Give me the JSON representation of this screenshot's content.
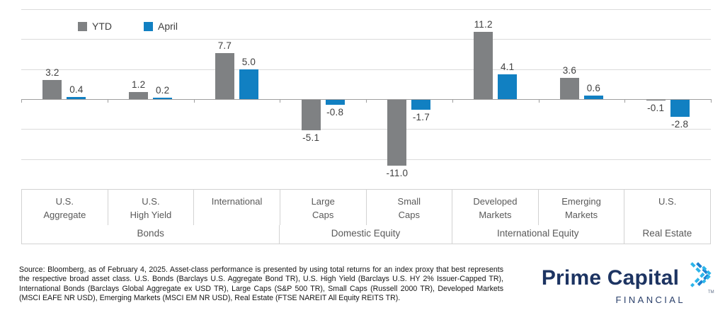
{
  "chart_data": {
    "type": "bar",
    "title": "",
    "categories": [
      "U.S.\nAggregate",
      "U.S.\nHigh Yield",
      "International",
      "Large\nCaps",
      "Small\nCaps",
      "Developed\nMarkets",
      "Emerging\nMarkets",
      "U.S."
    ],
    "series": [
      {
        "name": "YTD",
        "color": "#7f8183",
        "values": [
          3.2,
          1.2,
          7.7,
          -5.1,
          -11.0,
          11.2,
          3.6,
          -0.1
        ]
      },
      {
        "name": "April",
        "color": "#1180c2",
        "values": [
          0.4,
          0.2,
          5.0,
          -0.8,
          -1.7,
          4.1,
          0.6,
          -2.8
        ]
      }
    ],
    "groups": [
      {
        "label": "Bonds",
        "span": 3
      },
      {
        "label": "Domestic Equity",
        "span": 2
      },
      {
        "label": "International Equity",
        "span": 2
      },
      {
        "label": "Real Estate",
        "span": 1
      }
    ],
    "ylim": [
      -15,
      15
    ],
    "grid_step": 5,
    "grid": true,
    "legend_position": "top-left",
    "xlabel": "",
    "ylabel": ""
  },
  "legend": {
    "ytd_label": "YTD",
    "april_label": "April"
  },
  "footnote": "Source: Bloomberg, as of February 4, 2025. Asset-class performance is presented by using total returns for an index proxy that best represents the respective broad asset class. U.S. Bonds (Barclays U.S. Aggregate Bond TR), U.S. High Yield (Barclays U.S. HY 2% Issuer-Capped TR), International Bonds (Barclays Global Aggregate ex USD TR), Large Caps (S&P 500 TR), Small Caps (Russell 2000 TR), Developed Markets (MSCI EAFE NR USD), Emerging Markets (MSCI EM NR USD), Real Estate (FTSE NAREIT All Equity REITS TR).",
  "logo": {
    "name": "Prime Capital",
    "sub": "FINANCIAL",
    "tm": "TM",
    "navy": "#1d3462",
    "icon_cyan": "#2cb5ea",
    "icon_blue": "#1b7fd0"
  }
}
